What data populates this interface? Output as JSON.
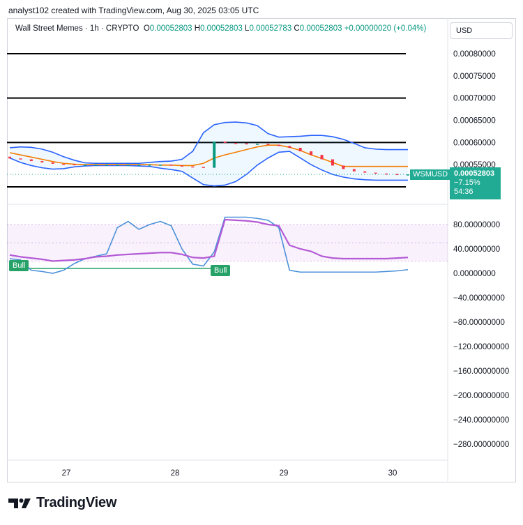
{
  "header_text": "analyst102 created with TradingView.com, Aug 30, 2025 03:05 UTC",
  "legend": {
    "symbol": "Wall Street Memes · 1h · CRYPTO",
    "open_label": "O",
    "open": "0.00052803",
    "high_label": "H",
    "high": "0.00052803",
    "low_label": "L",
    "low": "0.00052783",
    "close_label": "C",
    "close": "0.00052803",
    "change": "+0.00000020 (+0.04%)"
  },
  "currency_button": "USD",
  "price_tag": {
    "symbol": "WSMUSD",
    "price": "0.00052803",
    "change_pct": "−7.15%",
    "countdown": "54:36"
  },
  "bull_labels": [
    "Bull",
    "Bull"
  ],
  "brand": "TradingView",
  "colors": {
    "bollinger": "#2962ff",
    "middle_band": "#f57c00",
    "stoch_k": "#4a90d9",
    "stoch_d": "#b45ad6",
    "bull_line": "#26a269",
    "up_candle": "#089981",
    "down_candle": "#f23645"
  },
  "chart_data": [
    {
      "type": "line",
      "name": "price",
      "x_ticks": [
        "27",
        "28",
        "29",
        "30"
      ],
      "y_ticks": [
        "0.00080000",
        "0.00075000",
        "0.00070000",
        "0.00065000",
        "0.00060000",
        "0.00055000"
      ],
      "ylim": [
        0.00052,
        0.00082
      ],
      "horizontal_levels": [
        0.0008,
        0.0007,
        0.0006,
        0.0005
      ],
      "x": [
        0,
        4,
        8,
        12,
        16,
        20,
        24,
        28,
        32,
        36,
        40,
        44,
        48,
        52,
        56,
        60,
        64,
        68,
        72,
        76,
        80,
        84,
        88,
        92,
        96,
        100,
        104,
        108,
        112,
        116,
        120,
        124,
        128,
        132,
        136,
        140,
        144,
        148
      ],
      "close": [
        0.000564,
        0.000562,
        0.000558,
        0.000555,
        0.000552,
        0.000551,
        0.00055,
        0.00055,
        0.00055,
        0.00055,
        0.00055,
        0.00055,
        0.00055,
        0.00055,
        0.00055,
        0.000548,
        0.000546,
        0.000545,
        0.000543,
        0.000602,
        0.000599,
        0.000598,
        0.000597,
        0.000597,
        0.000595,
        0.000592,
        0.000588,
        0.00058,
        0.000572,
        0.000562,
        0.000548,
        0.00054,
        0.000535,
        0.000532,
        0.00053,
        0.000529,
        0.000528,
        0.000528
      ],
      "upper_band": [
        0.000588,
        0.00059,
        0.000589,
        0.000585,
        0.000578,
        0.000568,
        0.00056,
        0.000554,
        0.000553,
        0.000553,
        0.000553,
        0.000553,
        0.000553,
        0.000555,
        0.000557,
        0.000558,
        0.000562,
        0.00058,
        0.000622,
        0.00064,
        0.000645,
        0.000646,
        0.000644,
        0.000638,
        0.00062,
        0.000612,
        0.000613,
        0.000614,
        0.000616,
        0.000616,
        0.000613,
        0.000607,
        0.000598,
        0.000588,
        0.000585,
        0.000584,
        0.000584,
        0.000584
      ],
      "middle_band": [
        0.000577,
        0.000572,
        0.000567,
        0.000562,
        0.000557,
        0.000553,
        0.000551,
        0.00055,
        0.00055,
        0.00055,
        0.00055,
        0.00055,
        0.00055,
        0.00055,
        0.000549,
        0.000549,
        0.000548,
        0.000548,
        0.000553,
        0.000565,
        0.000572,
        0.000578,
        0.000584,
        0.00059,
        0.000594,
        0.000594,
        0.000589,
        0.000582,
        0.000572,
        0.000564,
        0.000555,
        0.000546,
        0.000546,
        0.000546,
        0.000546,
        0.000546,
        0.000546,
        0.000546
      ],
      "lower_band": [
        0.000565,
        0.000555,
        0.000548,
        0.000543,
        0.00054,
        0.000541,
        0.000545,
        0.000547,
        0.000548,
        0.000548,
        0.000548,
        0.000548,
        0.000547,
        0.000546,
        0.000542,
        0.000539,
        0.000535,
        0.00052,
        0.000505,
        0.000502,
        0.000504,
        0.000512,
        0.000528,
        0.000549,
        0.000565,
        0.000578,
        0.00058,
        0.000565,
        0.00055,
        0.000538,
        0.000528,
        0.000522,
        0.000518,
        0.000516,
        0.000515,
        0.000515,
        0.000515,
        0.000515
      ]
    },
    {
      "type": "line",
      "name": "stochastic",
      "y_ticks": [
        "80.00000000",
        "40.00000000",
        "0.00000000",
        "−40.00000000",
        "−80.00000000",
        "−120.00000000",
        "−160.00000000",
        "−200.00000000",
        "−240.00000000",
        "−280.00000000"
      ],
      "ylim": [
        -300,
        100
      ],
      "band": [
        20,
        80
      ],
      "x": [
        0,
        4,
        8,
        12,
        16,
        20,
        24,
        28,
        32,
        36,
        40,
        44,
        48,
        52,
        56,
        60,
        64,
        68,
        72,
        76,
        80,
        84,
        88,
        92,
        96,
        100,
        104,
        108,
        112,
        116,
        120,
        124,
        128,
        132,
        136,
        140,
        144,
        148
      ],
      "k": [
        24,
        22,
        5,
        3,
        0,
        5,
        16,
        24,
        28,
        32,
        75,
        85,
        72,
        80,
        85,
        78,
        40,
        15,
        12,
        35,
        92,
        92,
        92,
        90,
        87,
        75,
        5,
        2,
        2,
        2,
        2,
        2,
        2,
        2,
        2,
        3,
        4,
        6
      ],
      "d": [
        30,
        27,
        25,
        23,
        20,
        21,
        22,
        24,
        27,
        28,
        30,
        31,
        32,
        33,
        34,
        34,
        31,
        26,
        25,
        28,
        88,
        87,
        86,
        84,
        80,
        78,
        46,
        40,
        36,
        28,
        25,
        24,
        24,
        24,
        24,
        24,
        25,
        26
      ]
    }
  ]
}
